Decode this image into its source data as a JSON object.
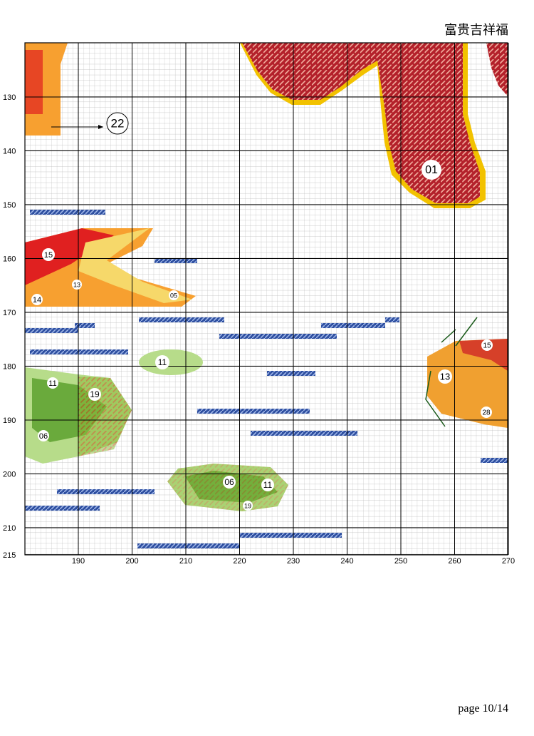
{
  "header": {
    "title": "富贵吉祥福"
  },
  "grid": {
    "xticks": [
      190,
      200,
      210,
      220,
      230,
      240,
      250,
      260,
      270
    ],
    "yticks": [
      130,
      140,
      150,
      160,
      170,
      180,
      190,
      200,
      210,
      215
    ]
  },
  "symbols": [
    "22",
    "01",
    "15",
    "13",
    "14",
    "05",
    "11",
    "11",
    "19",
    "06",
    "06",
    "11",
    "19",
    "15",
    "13",
    "28"
  ],
  "footer": {
    "page": "page 10/14"
  }
}
